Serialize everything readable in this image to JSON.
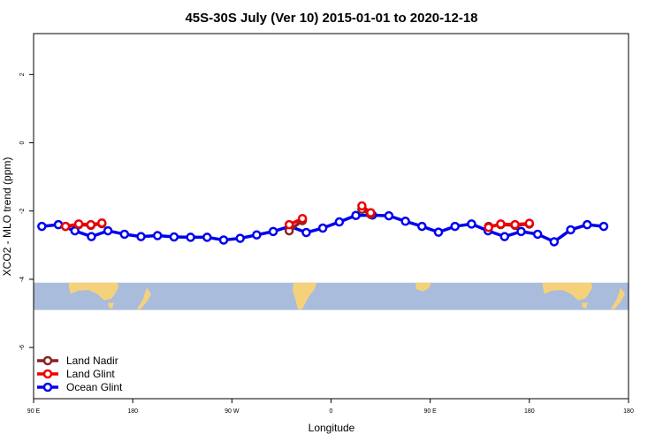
{
  "chart_data": {
    "type": "line",
    "title": "45S-30S July (Ver 10)   2015-01-01 to 2020-12-18",
    "xlabel": "Longitude",
    "ylabel": "XCO2 - MLO trend (ppm)",
    "xlim": [
      0,
      540
    ],
    "ylim": [
      -7.5,
      3.2
    ],
    "x_ticks": [
      {
        "value": 0,
        "label": "90 E"
      },
      {
        "value": 90,
        "label": "180"
      },
      {
        "value": 180,
        "label": "90 W"
      },
      {
        "value": 270,
        "label": "0"
      },
      {
        "value": 360,
        "label": "90 E"
      },
      {
        "value": 450,
        "label": "180"
      }
    ],
    "y_ticks": [
      {
        "value": 2,
        "label": "2"
      },
      {
        "value": 0,
        "label": "0"
      },
      {
        "value": -2,
        "label": "-2"
      },
      {
        "value": -4,
        "label": "-4"
      },
      {
        "value": -6,
        "label": "-6"
      }
    ],
    "map_band": {
      "ymin": -4.9,
      "ymax": -4.1,
      "ocean_color": "#a9bcdc",
      "land_color": "#f5d27a"
    },
    "legend_position": "bottom-left",
    "series": [
      {
        "name": "Ocean Glint",
        "color": "#0000ee",
        "x": [
          7.5,
          22.5,
          37.5,
          52.5,
          67.5,
          82.5,
          97.5,
          112.5,
          127.5,
          142.5,
          157.5,
          172.5,
          187.5,
          202.5,
          217.5,
          232.5,
          247.5,
          262.5,
          277.5,
          292.5,
          307.5,
          322.5,
          337.5,
          352.5,
          367.5,
          382.5,
          397.5,
          412.5,
          427.5,
          442.5,
          457.5,
          472.5,
          487.5,
          502.5,
          517.5
        ],
        "y": [
          -2.45,
          -2.4,
          -2.58,
          -2.75,
          -2.58,
          -2.68,
          -2.75,
          -2.72,
          -2.76,
          -2.77,
          -2.77,
          -2.85,
          -2.8,
          -2.7,
          -2.6,
          -2.45,
          -2.63,
          -2.5,
          -2.32,
          -2.13,
          -2.12,
          -2.14,
          -2.3,
          -2.45,
          -2.62,
          -2.45,
          -2.38,
          -2.58,
          -2.75,
          -2.6,
          -2.68,
          -2.9,
          -2.55,
          -2.4,
          -2.45
        ]
      },
      {
        "name": "Land Nadir",
        "color": "#8b2323",
        "x": [
          29,
          41,
          52,
          62,
          232,
          244,
          298,
          306,
          413,
          424,
          437,
          450
        ],
        "y": [
          -2.45,
          -2.4,
          -2.42,
          -2.37,
          -2.58,
          -2.28,
          -1.95,
          -2.1,
          -2.45,
          -2.4,
          -2.42,
          -2.38
        ]
      },
      {
        "name": "Land Glint",
        "color": "#ee0000",
        "x": [
          29,
          41,
          52,
          62,
          232,
          244,
          298,
          306,
          413,
          424,
          437,
          450
        ],
        "y": [
          -2.45,
          -2.38,
          -2.4,
          -2.35,
          -2.4,
          -2.22,
          -1.85,
          -2.05,
          -2.48,
          -2.38,
          -2.4,
          -2.36
        ]
      }
    ]
  }
}
